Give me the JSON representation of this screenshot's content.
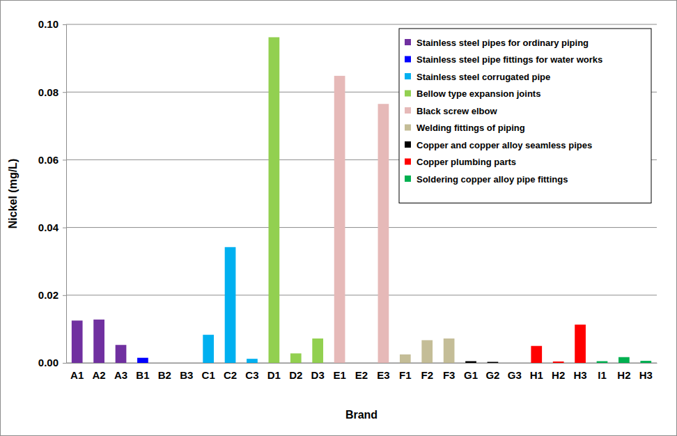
{
  "chart_data": {
    "type": "bar",
    "x_label": "Brand",
    "y_label": "Nickel (mg/L)",
    "categories": [
      "A1",
      "A2",
      "A3",
      "B1",
      "B2",
      "B3",
      "C1",
      "C2",
      "C3",
      "D1",
      "D2",
      "D3",
      "E1",
      "E2",
      "E3",
      "F1",
      "F2",
      "F3",
      "G1",
      "G2",
      "G3",
      "H1",
      "H2",
      "H3",
      "I1",
      "H2",
      "H3"
    ],
    "series": [
      {
        "name": "Stainless steel pipes for ordinary piping",
        "color": "#7030a0",
        "values": [
          0.0125,
          0.0128,
          0.0053,
          null,
          null,
          null,
          null,
          null,
          null,
          null,
          null,
          null,
          null,
          null,
          null,
          null,
          null,
          null,
          null,
          null,
          null,
          null,
          null,
          null,
          null,
          null,
          null
        ]
      },
      {
        "name": "Stainless steel pipe fittings for water works",
        "color": "#0000ff",
        "values": [
          null,
          null,
          null,
          0.0015,
          0,
          0,
          null,
          null,
          null,
          null,
          null,
          null,
          null,
          null,
          null,
          null,
          null,
          null,
          null,
          null,
          null,
          null,
          null,
          null,
          null,
          null,
          null
        ]
      },
      {
        "name": "Stainless steel corrugated pipe",
        "color": "#00b0f0",
        "values": [
          null,
          null,
          null,
          null,
          null,
          null,
          0.0083,
          0.0342,
          0.0012,
          null,
          null,
          null,
          null,
          null,
          null,
          null,
          null,
          null,
          null,
          null,
          null,
          null,
          null,
          null,
          null,
          null,
          null
        ]
      },
      {
        "name": "Bellow type expansion joints",
        "color": "#92d050",
        "values": [
          null,
          null,
          null,
          null,
          null,
          null,
          null,
          null,
          null,
          0.0962,
          0.0028,
          0.0072,
          null,
          null,
          null,
          null,
          null,
          null,
          null,
          null,
          null,
          null,
          null,
          null,
          null,
          null,
          null
        ]
      },
      {
        "name": "Black screw elbow",
        "color": "#e6b9b8",
        "values": [
          null,
          null,
          null,
          null,
          null,
          null,
          null,
          null,
          null,
          null,
          null,
          null,
          0.0848,
          0,
          0.0765,
          null,
          null,
          null,
          null,
          null,
          null,
          null,
          null,
          null,
          null,
          null,
          null
        ]
      },
      {
        "name": "Welding fittings of piping",
        "color": "#c4bd97",
        "values": [
          null,
          null,
          null,
          null,
          null,
          null,
          null,
          null,
          null,
          null,
          null,
          null,
          null,
          null,
          null,
          0.0025,
          0.0067,
          0.0072,
          null,
          null,
          null,
          null,
          null,
          null,
          null,
          null,
          null
        ]
      },
      {
        "name": "Copper and copper alloy seamless pipes",
        "color": "#000000",
        "values": [
          null,
          null,
          null,
          null,
          null,
          null,
          null,
          null,
          null,
          null,
          null,
          null,
          null,
          null,
          null,
          null,
          null,
          null,
          0.0005,
          0.0003,
          0,
          null,
          null,
          null,
          null,
          null,
          null
        ]
      },
      {
        "name": "Copper plumbing parts",
        "color": "#ff0000",
        "values": [
          null,
          null,
          null,
          null,
          null,
          null,
          null,
          null,
          null,
          null,
          null,
          null,
          null,
          null,
          null,
          null,
          null,
          null,
          null,
          null,
          null,
          0.005,
          0.0004,
          0.0113,
          null,
          null,
          null
        ]
      },
      {
        "name": "Soldering copper alloy pipe fittings",
        "color": "#00b050",
        "values": [
          null,
          null,
          null,
          null,
          null,
          null,
          null,
          null,
          null,
          null,
          null,
          null,
          null,
          null,
          null,
          null,
          null,
          null,
          null,
          null,
          null,
          null,
          null,
          null,
          0.0005,
          0.0017,
          0.0006
        ]
      }
    ],
    "ylim": [
      0,
      0.1
    ],
    "yticks": [
      {
        "value": 0,
        "label": "0.00"
      },
      {
        "value": 0.02,
        "label": "0.02"
      },
      {
        "value": 0.04,
        "label": "0.04"
      },
      {
        "value": 0.06,
        "label": "0.06"
      },
      {
        "value": 0.08,
        "label": "0.08"
      },
      {
        "value": 0.1,
        "label": "0.10"
      }
    ],
    "grid": true,
    "legend": "top-right"
  }
}
